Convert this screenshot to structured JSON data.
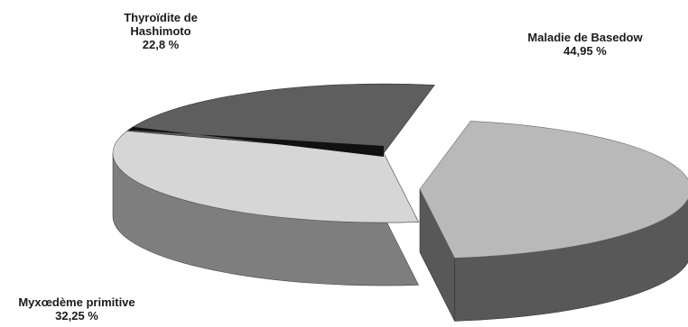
{
  "chart_data": {
    "type": "pie",
    "style": "3d-exploded",
    "slices": [
      {
        "name": "Maladie de Basedow",
        "value": 44.95,
        "value_label": "44,95 %",
        "color": "#b9b9b9",
        "side_color": "#585858"
      },
      {
        "name": "Myxœdème primitive",
        "value": 32.25,
        "value_label": "32,25 %",
        "color": "#d6d6d6",
        "side_color": "#7e7e7e"
      },
      {
        "name": "Thyroïdite de Hashimoto",
        "name_lines": [
          "Thyroïdite de",
          "Hashimoto"
        ],
        "value": 22.8,
        "value_label": "22,8 %",
        "color": "#5e5e5e",
        "side_color": "#3c3c3c",
        "band_color": "#111111"
      }
    ],
    "legend": "none",
    "title": ""
  }
}
